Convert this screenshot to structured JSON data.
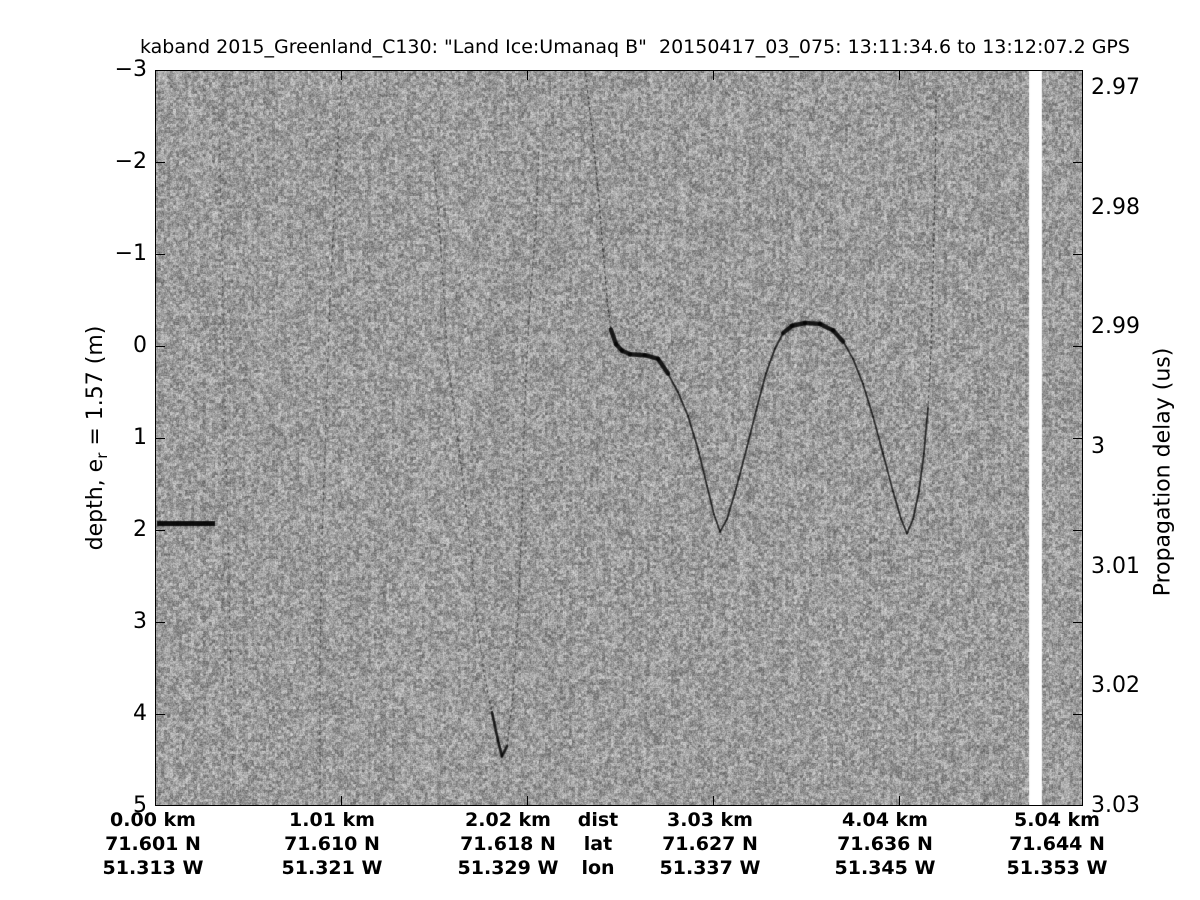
{
  "title": "kaband 2015_Greenland_C130: \"Land Ice:Umanaq B\"  20150417_03_075: 13:11:34.6 to 13:12:07.2 GPS",
  "axes": {
    "left": {
      "label_pre": "depth, e",
      "label_sub": "r",
      "label_post": " = 1.57 (m)",
      "tick_labels": [
        "−3",
        "−2",
        "−1",
        "0",
        "1",
        "2",
        "3",
        "4",
        "5"
      ],
      "tick_values": [
        -3,
        -2,
        -1,
        0,
        1,
        2,
        3,
        4,
        5
      ],
      "range": [
        -3,
        5
      ]
    },
    "right": {
      "label": "Propagation delay (us)",
      "tick_labels": [
        "2.97",
        "2.98",
        "2.99",
        "3",
        "3.01",
        "3.02",
        "3.03"
      ],
      "tick_values": [
        2.97,
        2.98,
        2.99,
        3.0,
        3.01,
        3.02,
        3.03
      ],
      "range": [
        2.9685,
        3.03
      ]
    },
    "bottom": {
      "row_labels": {
        "dist": "dist",
        "lat": "lat",
        "lon": "lon"
      },
      "columns": [
        {
          "dist": "0.00 km",
          "lat": "71.601 N",
          "lon": "51.313 W"
        },
        {
          "dist": "1.01 km",
          "lat": "71.610 N",
          "lon": "51.321 W"
        },
        {
          "dist": "2.02 km",
          "lat": "71.618 N",
          "lon": "51.329 W"
        },
        {
          "dist": "3.03 km",
          "lat": "71.627 N",
          "lon": "51.337 W"
        },
        {
          "dist": "4.04 km",
          "lat": "71.636 N",
          "lon": "51.345 W"
        },
        {
          "dist": "5.04 km",
          "lat": "71.644 N",
          "lon": "51.353 W"
        }
      ]
    }
  },
  "chart_data": {
    "type": "heatmap",
    "description": "Grayscale ka-band radar altimeter echogram: speckle noise background with dark surface-echo traces",
    "x_axis": {
      "label": "distance",
      "units": "km",
      "range": [
        0,
        5.04
      ],
      "ticks_km": [
        0,
        1.01,
        2.02,
        3.03,
        4.04,
        5.04
      ]
    },
    "y_axis_left": {
      "label": "depth, e_r = 1.57 (m)",
      "range": [
        -3,
        5
      ]
    },
    "y_axis_right": {
      "label": "Propagation delay (us)",
      "range": [
        2.9685,
        3.03
      ]
    },
    "surface_echo": {
      "km": [
        2.335,
        2.373,
        2.406,
        2.433,
        2.455,
        2.476,
        2.504,
        2.536,
        2.58,
        2.661,
        2.732,
        2.786,
        2.84,
        2.895,
        2.949,
        2.998,
        3.036,
        3.069,
        3.107,
        3.156,
        3.215,
        3.27,
        3.318,
        3.367,
        3.411,
        3.46,
        3.53,
        3.612,
        3.682,
        3.737,
        3.791,
        3.845,
        3.9,
        3.954,
        4.008,
        4.052,
        4.084,
        4.117,
        4.149,
        4.176,
        4.198,
        4.215,
        4.226,
        4.237,
        4.242
      ],
      "depth": [
        -3.01,
        -2.36,
        -1.71,
        -1.05,
        -0.51,
        -0.18,
        -0.02,
        0.05,
        0.09,
        0.1,
        0.14,
        0.3,
        0.5,
        0.76,
        1.12,
        1.52,
        1.83,
        2.02,
        1.88,
        1.55,
        1.1,
        0.66,
        0.3,
        0.03,
        -0.14,
        -0.22,
        -0.25,
        -0.24,
        -0.17,
        -0.05,
        0.14,
        0.41,
        0.77,
        1.17,
        1.58,
        1.88,
        2.04,
        1.88,
        1.58,
        1.17,
        0.68,
        0.03,
        -0.84,
        -1.82,
        -2.74
      ]
    },
    "surface_bar": {
      "km": [
        0.011,
        0.326
      ],
      "depth": 1.93
    },
    "hyperbola": {
      "km": [
        1.51,
        1.553,
        1.591,
        1.645,
        1.684,
        1.722,
        1.754,
        1.792,
        1.83,
        1.863,
        1.884,
        1.912,
        1.944,
        1.971,
        1.988,
        1.998,
        2.009,
        2.037,
        2.069,
        2.085
      ],
      "depth": [
        -2.14,
        -1.05,
        0.17,
        1.01,
        1.66,
        2.35,
        3.08,
        3.62,
        3.98,
        4.29,
        4.46,
        4.35,
        3.8,
        2.93,
        2.15,
        1.45,
        0.58,
        -0.51,
        -1.33,
        -2.14
      ]
    },
    "dotted_trace": {
      "km": [
        0.348,
        0.364,
        0.38,
        0.397,
        0.413,
        0.424
      ],
      "depth": [
        -2.47,
        -0.95,
        0.58,
        2.1,
        3.62,
        4.92
      ]
    },
    "dashed_trace": {
      "km": [
        1.016,
        0.983,
        0.95,
        0.929,
        0.907,
        0.896,
        0.896
      ],
      "depth": [
        -3.01,
        -1.82,
        -0.51,
        0.79,
        2.1,
        3.4,
        4.92
      ]
    },
    "data_gap_km": [
      4.747,
      4.817
    ],
    "noise": {
      "mean_gray": "#9b9b9b",
      "min_gray": "#5f5f5f",
      "max_gray": "#d8d8d8"
    }
  },
  "layout_text": {
    "legend_note": ""
  }
}
